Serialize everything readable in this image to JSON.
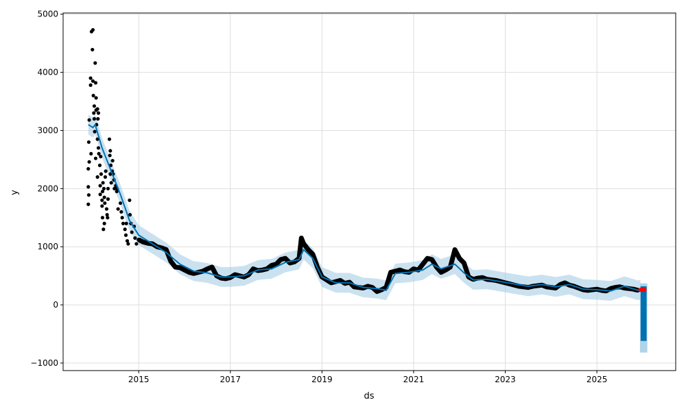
{
  "chart_data": {
    "type": "line",
    "title": "",
    "xlabel": "ds",
    "ylabel": "y",
    "xlim": [
      2013.35,
      2026.72
    ],
    "ylim": [
      -1130,
      5020
    ],
    "grid": true,
    "x_ticks": [
      2015,
      2017,
      2019,
      2021,
      2023,
      2025
    ],
    "x_tick_labels": [
      "2015",
      "2017",
      "2019",
      "2021",
      "2023",
      "2025"
    ],
    "y_ticks": [
      -1000,
      0,
      1000,
      2000,
      3000,
      4000,
      5000
    ],
    "y_tick_labels": [
      "−1000",
      "0",
      "1000",
      "2000",
      "3000",
      "4000",
      "5000"
    ],
    "colors": {
      "forecast": "#0072B2",
      "interval": "#9ec8e3",
      "actual": "#000000",
      "highlight": "#ff0000",
      "grid": "#dddddd"
    },
    "interval_halfwidth": 170,
    "early_actuals": [
      [
        2013.9,
        1730
      ],
      [
        2013.9,
        2030
      ],
      [
        2013.9,
        2340
      ],
      [
        2013.91,
        2800
      ],
      [
        2013.91,
        1890
      ],
      [
        2013.92,
        2460
      ],
      [
        2013.92,
        3180
      ],
      [
        2013.95,
        3900
      ],
      [
        2013.95,
        3780
      ],
      [
        2013.96,
        2600
      ],
      [
        2013.97,
        4700
      ],
      [
        2014.0,
        4730
      ],
      [
        2013.99,
        4390
      ],
      [
        2014.0,
        3850
      ],
      [
        2014.01,
        3600
      ],
      [
        2014.02,
        3300
      ],
      [
        2014.03,
        3420
      ],
      [
        2014.03,
        3200
      ],
      [
        2014.04,
        2980
      ],
      [
        2014.05,
        4160
      ],
      [
        2014.06,
        3820
      ],
      [
        2014.07,
        3560
      ],
      [
        2014.07,
        3350
      ],
      [
        2014.08,
        3100
      ],
      [
        2014.06,
        2520
      ],
      [
        2014.1,
        3370
      ],
      [
        2014.11,
        3200
      ],
      [
        2014.12,
        3300
      ],
      [
        2014.12,
        2700
      ],
      [
        2014.13,
        2600
      ],
      [
        2014.1,
        2850
      ],
      [
        2014.1,
        2200
      ],
      [
        2014.15,
        2400
      ],
      [
        2014.16,
        2050
      ],
      [
        2014.17,
        2550
      ],
      [
        2014.16,
        1900
      ],
      [
        2014.18,
        2250
      ],
      [
        2014.2,
        1800
      ],
      [
        2014.2,
        1700
      ],
      [
        2014.21,
        1950
      ],
      [
        2014.22,
        2100
      ],
      [
        2014.21,
        1500
      ],
      [
        2014.23,
        1300
      ],
      [
        2014.24,
        2000
      ],
      [
        2014.25,
        1850
      ],
      [
        2014.26,
        1750
      ],
      [
        2014.25,
        1400
      ],
      [
        2014.27,
        2200
      ],
      [
        2014.28,
        2300
      ],
      [
        2014.3,
        1650
      ],
      [
        2014.31,
        1550
      ],
      [
        2014.32,
        1500
      ],
      [
        2014.33,
        1820
      ],
      [
        2014.33,
        2000
      ],
      [
        2014.36,
        2850
      ],
      [
        2014.37,
        2570
      ],
      [
        2014.38,
        2650
      ],
      [
        2014.39,
        2400
      ],
      [
        2014.38,
        2250
      ],
      [
        2014.4,
        2100
      ],
      [
        2014.42,
        2300
      ],
      [
        2014.43,
        2480
      ],
      [
        2014.44,
        2250
      ],
      [
        2014.46,
        2150
      ],
      [
        2014.47,
        2000
      ],
      [
        2014.5,
        2050
      ],
      [
        2014.52,
        1950
      ],
      [
        2014.53,
        2000
      ],
      [
        2014.55,
        1650
      ],
      [
        2014.6,
        1750
      ],
      [
        2014.62,
        1600
      ],
      [
        2014.64,
        1500
      ],
      [
        2014.66,
        1400
      ],
      [
        2014.7,
        1300
      ],
      [
        2014.72,
        1200
      ],
      [
        2014.73,
        1400
      ],
      [
        2014.75,
        1100
      ],
      [
        2014.77,
        1050
      ],
      [
        2014.8,
        1800
      ],
      [
        2014.81,
        1550
      ],
      [
        2014.83,
        1400
      ],
      [
        2014.85,
        1250
      ],
      [
        2014.9,
        1350
      ],
      [
        2014.92,
        1150
      ],
      [
        2014.95,
        1050
      ]
    ],
    "actuals": [
      [
        2015.0,
        1120
      ],
      [
        2015.1,
        1080
      ],
      [
        2015.2,
        1060
      ],
      [
        2015.3,
        1050
      ],
      [
        2015.4,
        1000
      ],
      [
        2015.5,
        980
      ],
      [
        2015.6,
        950
      ],
      [
        2015.7,
        750
      ],
      [
        2015.8,
        650
      ],
      [
        2015.9,
        640
      ],
      [
        2016.0,
        600
      ],
      [
        2016.1,
        560
      ],
      [
        2016.2,
        540
      ],
      [
        2016.3,
        560
      ],
      [
        2016.4,
        580
      ],
      [
        2016.5,
        620
      ],
      [
        2016.6,
        650
      ],
      [
        2016.7,
        500
      ],
      [
        2016.8,
        460
      ],
      [
        2016.9,
        450
      ],
      [
        2017.0,
        470
      ],
      [
        2017.1,
        520
      ],
      [
        2017.2,
        500
      ],
      [
        2017.3,
        480
      ],
      [
        2017.4,
        520
      ],
      [
        2017.5,
        620
      ],
      [
        2017.6,
        590
      ],
      [
        2017.7,
        600
      ],
      [
        2017.8,
        620
      ],
      [
        2017.9,
        680
      ],
      [
        2018.0,
        700
      ],
      [
        2018.1,
        780
      ],
      [
        2018.2,
        800
      ],
      [
        2018.3,
        720
      ],
      [
        2018.4,
        740
      ],
      [
        2018.5,
        800
      ],
      [
        2018.55,
        1150
      ],
      [
        2018.6,
        1050
      ],
      [
        2018.7,
        950
      ],
      [
        2018.8,
        870
      ],
      [
        2018.9,
        650
      ],
      [
        2019.0,
        480
      ],
      [
        2019.1,
        430
      ],
      [
        2019.2,
        380
      ],
      [
        2019.3,
        400
      ],
      [
        2019.4,
        420
      ],
      [
        2019.5,
        370
      ],
      [
        2019.6,
        390
      ],
      [
        2019.7,
        310
      ],
      [
        2019.8,
        300
      ],
      [
        2019.9,
        290
      ],
      [
        2020.0,
        320
      ],
      [
        2020.1,
        300
      ],
      [
        2020.2,
        230
      ],
      [
        2020.3,
        260
      ],
      [
        2020.4,
        300
      ],
      [
        2020.5,
        560
      ],
      [
        2020.6,
        580
      ],
      [
        2020.7,
        600
      ],
      [
        2020.8,
        570
      ],
      [
        2020.9,
        560
      ],
      [
        2021.0,
        620
      ],
      [
        2021.1,
        600
      ],
      [
        2021.2,
        700
      ],
      [
        2021.3,
        800
      ],
      [
        2021.4,
        780
      ],
      [
        2021.5,
        650
      ],
      [
        2021.6,
        560
      ],
      [
        2021.7,
        600
      ],
      [
        2021.8,
        650
      ],
      [
        2021.9,
        950
      ],
      [
        2022.0,
        800
      ],
      [
        2022.1,
        720
      ],
      [
        2022.2,
        480
      ],
      [
        2022.3,
        440
      ],
      [
        2022.4,
        460
      ],
      [
        2022.5,
        470
      ],
      [
        2022.6,
        440
      ],
      [
        2022.7,
        430
      ],
      [
        2022.8,
        420
      ],
      [
        2022.9,
        400
      ],
      [
        2023.0,
        380
      ],
      [
        2023.1,
        360
      ],
      [
        2023.2,
        340
      ],
      [
        2023.3,
        320
      ],
      [
        2023.4,
        310
      ],
      [
        2023.5,
        300
      ],
      [
        2023.6,
        320
      ],
      [
        2023.7,
        330
      ],
      [
        2023.8,
        340
      ],
      [
        2023.9,
        310
      ],
      [
        2024.0,
        300
      ],
      [
        2024.1,
        290
      ],
      [
        2024.2,
        350
      ],
      [
        2024.3,
        380
      ],
      [
        2024.4,
        340
      ],
      [
        2024.5,
        320
      ],
      [
        2024.6,
        290
      ],
      [
        2024.7,
        260
      ],
      [
        2024.8,
        250
      ],
      [
        2024.9,
        260
      ],
      [
        2025.0,
        270
      ],
      [
        2025.1,
        250
      ],
      [
        2025.2,
        240
      ],
      [
        2025.3,
        280
      ],
      [
        2025.4,
        300
      ],
      [
        2025.5,
        310
      ],
      [
        2025.6,
        290
      ],
      [
        2025.7,
        280
      ],
      [
        2025.8,
        270
      ],
      [
        2025.9,
        250
      ]
    ],
    "highlighted_actuals": [
      [
        2025.95,
        260
      ],
      [
        2025.98,
        255
      ],
      [
        2026.01,
        262
      ],
      [
        2026.04,
        258
      ]
    ],
    "yhat": [
      [
        2013.9,
        3100
      ],
      [
        2014.0,
        3050
      ],
      [
        2014.05,
        3100
      ],
      [
        2014.2,
        2700
      ],
      [
        2014.4,
        2300
      ],
      [
        2014.6,
        1900
      ],
      [
        2014.8,
        1450
      ],
      [
        2015.0,
        1200
      ],
      [
        2015.3,
        1050
      ],
      [
        2015.6,
        900
      ],
      [
        2015.9,
        700
      ],
      [
        2016.2,
        580
      ],
      [
        2016.5,
        550
      ],
      [
        2016.8,
        480
      ],
      [
        2017.0,
        480
      ],
      [
        2017.3,
        500
      ],
      [
        2017.6,
        600
      ],
      [
        2017.9,
        620
      ],
      [
        2018.2,
        730
      ],
      [
        2018.5,
        780
      ],
      [
        2018.6,
        950
      ],
      [
        2018.8,
        800
      ],
      [
        2019.0,
        480
      ],
      [
        2019.3,
        380
      ],
      [
        2019.6,
        380
      ],
      [
        2019.9,
        300
      ],
      [
        2020.2,
        280
      ],
      [
        2020.4,
        250
      ],
      [
        2020.6,
        540
      ],
      [
        2020.9,
        560
      ],
      [
        2021.2,
        600
      ],
      [
        2021.4,
        700
      ],
      [
        2021.6,
        620
      ],
      [
        2021.9,
        700
      ],
      [
        2022.1,
        550
      ],
      [
        2022.3,
        430
      ],
      [
        2022.6,
        440
      ],
      [
        2022.9,
        400
      ],
      [
        2023.2,
        360
      ],
      [
        2023.5,
        320
      ],
      [
        2023.8,
        350
      ],
      [
        2024.1,
        310
      ],
      [
        2024.4,
        350
      ],
      [
        2024.7,
        270
      ],
      [
        2025.0,
        260
      ],
      [
        2025.3,
        240
      ],
      [
        2025.6,
        320
      ],
      [
        2025.9,
        250
      ],
      [
        2025.95,
        260
      ]
    ],
    "forecast_range": {
      "start": 2025.94,
      "end": 2026.1,
      "yhat_min": -620,
      "yhat_max": 320,
      "lower_min": -820,
      "upper_max": 370
    }
  }
}
